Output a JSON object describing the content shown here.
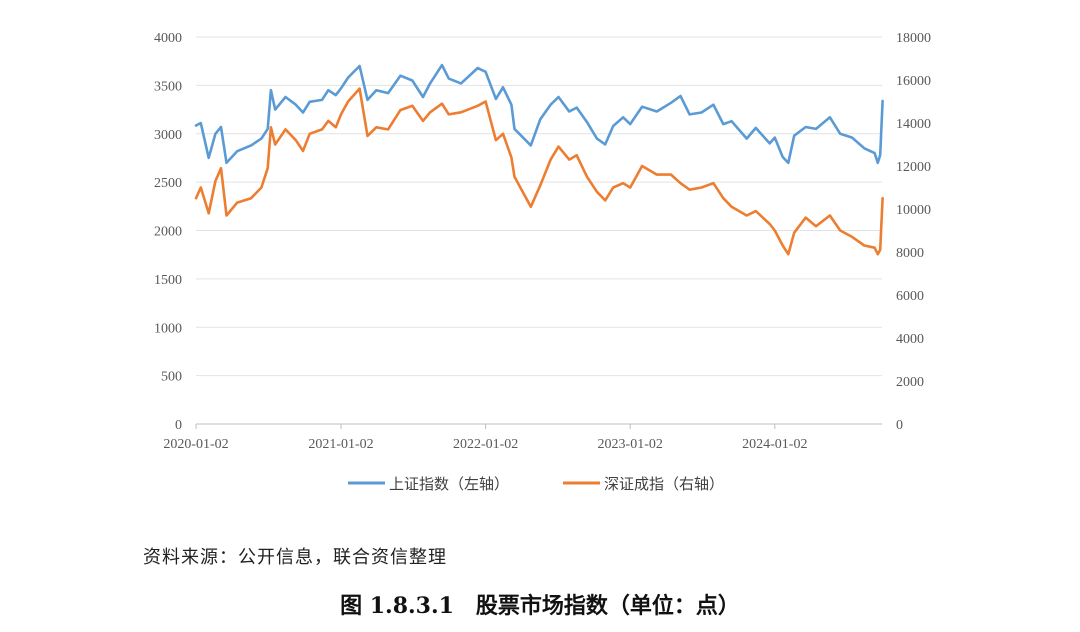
{
  "chart_data": {
    "type": "line",
    "x_tick_labels": [
      "2020-01-02",
      "2021-01-02",
      "2022-01-02",
      "2023-01-02",
      "2024-01-02"
    ],
    "y_left": {
      "ticks": [
        0,
        500,
        1000,
        1500,
        2000,
        2500,
        3000,
        3500,
        4000
      ],
      "range": [
        0,
        4000
      ]
    },
    "y_right": {
      "ticks": [
        0,
        2000,
        4000,
        6000,
        8000,
        10000,
        12000,
        14000,
        16000,
        18000
      ],
      "range": [
        0,
        18000
      ]
    },
    "grid": "horizontal",
    "legend_position": "bottom",
    "series": [
      {
        "name": "上证指数（左轴）",
        "axis": "left",
        "color": "#5b9bd5",
        "points": [
          [
            "2020-01-02",
            3085
          ],
          [
            "2020-01-14",
            3110
          ],
          [
            "2020-02-03",
            2750
          ],
          [
            "2020-02-20",
            3000
          ],
          [
            "2020-03-05",
            3070
          ],
          [
            "2020-03-19",
            2700
          ],
          [
            "2020-04-15",
            2820
          ],
          [
            "2020-05-20",
            2880
          ],
          [
            "2020-06-15",
            2950
          ],
          [
            "2020-07-01",
            3050
          ],
          [
            "2020-07-09",
            3450
          ],
          [
            "2020-07-20",
            3250
          ],
          [
            "2020-08-15",
            3380
          ],
          [
            "2020-09-10",
            3300
          ],
          [
            "2020-09-28",
            3220
          ],
          [
            "2020-10-15",
            3330
          ],
          [
            "2020-11-15",
            3350
          ],
          [
            "2020-12-01",
            3450
          ],
          [
            "2020-12-20",
            3400
          ],
          [
            "2021-01-02",
            3470
          ],
          [
            "2021-01-20",
            3580
          ],
          [
            "2021-02-18",
            3700
          ],
          [
            "2021-03-10",
            3350
          ],
          [
            "2021-04-01",
            3450
          ],
          [
            "2021-05-01",
            3420
          ],
          [
            "2021-06-01",
            3600
          ],
          [
            "2021-07-01",
            3550
          ],
          [
            "2021-07-28",
            3380
          ],
          [
            "2021-08-15",
            3520
          ],
          [
            "2021-09-14",
            3710
          ],
          [
            "2021-10-01",
            3570
          ],
          [
            "2021-11-01",
            3520
          ],
          [
            "2021-12-13",
            3680
          ],
          [
            "2022-01-02",
            3640
          ],
          [
            "2022-01-28",
            3360
          ],
          [
            "2022-02-15",
            3480
          ],
          [
            "2022-03-08",
            3300
          ],
          [
            "2022-03-16",
            3050
          ],
          [
            "2022-04-26",
            2880
          ],
          [
            "2022-05-20",
            3150
          ],
          [
            "2022-06-15",
            3300
          ],
          [
            "2022-07-05",
            3380
          ],
          [
            "2022-08-01",
            3230
          ],
          [
            "2022-08-20",
            3270
          ],
          [
            "2022-09-15",
            3120
          ],
          [
            "2022-10-10",
            2950
          ],
          [
            "2022-10-31",
            2890
          ],
          [
            "2022-11-20",
            3080
          ],
          [
            "2022-12-15",
            3170
          ],
          [
            "2023-01-02",
            3100
          ],
          [
            "2023-02-01",
            3280
          ],
          [
            "2023-03-10",
            3230
          ],
          [
            "2023-04-15",
            3320
          ],
          [
            "2023-05-09",
            3390
          ],
          [
            "2023-06-01",
            3200
          ],
          [
            "2023-07-01",
            3220
          ],
          [
            "2023-07-31",
            3300
          ],
          [
            "2023-08-25",
            3100
          ],
          [
            "2023-09-15",
            3130
          ],
          [
            "2023-10-23",
            2950
          ],
          [
            "2023-11-15",
            3060
          ],
          [
            "2023-12-20",
            2900
          ],
          [
            "2024-01-02",
            2960
          ],
          [
            "2024-01-22",
            2760
          ],
          [
            "2024-02-05",
            2700
          ],
          [
            "2024-02-20",
            2980
          ],
          [
            "2024-03-20",
            3070
          ],
          [
            "2024-04-15",
            3050
          ],
          [
            "2024-05-20",
            3170
          ],
          [
            "2024-06-15",
            3000
          ],
          [
            "2024-07-15",
            2960
          ],
          [
            "2024-08-15",
            2850
          ],
          [
            "2024-09-10",
            2800
          ],
          [
            "2024-09-18",
            2700
          ],
          [
            "2024-09-24",
            2780
          ],
          [
            "2024-09-30",
            3340
          ]
        ]
      },
      {
        "name": "深证成指（右轴）",
        "axis": "right",
        "color": "#ed7d31",
        "points": [
          [
            "2020-01-02",
            10500
          ],
          [
            "2020-01-14",
            11000
          ],
          [
            "2020-02-03",
            9800
          ],
          [
            "2020-02-20",
            11300
          ],
          [
            "2020-03-05",
            11900
          ],
          [
            "2020-03-19",
            9700
          ],
          [
            "2020-04-15",
            10300
          ],
          [
            "2020-05-20",
            10500
          ],
          [
            "2020-06-15",
            11000
          ],
          [
            "2020-07-01",
            11900
          ],
          [
            "2020-07-09",
            13800
          ],
          [
            "2020-07-20",
            13000
          ],
          [
            "2020-08-15",
            13700
          ],
          [
            "2020-09-10",
            13200
          ],
          [
            "2020-09-28",
            12700
          ],
          [
            "2020-10-15",
            13500
          ],
          [
            "2020-11-15",
            13700
          ],
          [
            "2020-12-01",
            14100
          ],
          [
            "2020-12-20",
            13800
          ],
          [
            "2021-01-02",
            14400
          ],
          [
            "2021-01-20",
            15000
          ],
          [
            "2021-02-18",
            15600
          ],
          [
            "2021-03-10",
            13400
          ],
          [
            "2021-04-01",
            13800
          ],
          [
            "2021-05-01",
            13700
          ],
          [
            "2021-06-01",
            14600
          ],
          [
            "2021-07-01",
            14800
          ],
          [
            "2021-07-28",
            14100
          ],
          [
            "2021-08-15",
            14500
          ],
          [
            "2021-09-14",
            14900
          ],
          [
            "2021-10-01",
            14400
          ],
          [
            "2021-11-01",
            14500
          ],
          [
            "2021-12-13",
            14800
          ],
          [
            "2022-01-02",
            15000
          ],
          [
            "2022-01-28",
            13200
          ],
          [
            "2022-02-15",
            13500
          ],
          [
            "2022-03-08",
            12400
          ],
          [
            "2022-03-16",
            11500
          ],
          [
            "2022-04-26",
            10100
          ],
          [
            "2022-05-20",
            11100
          ],
          [
            "2022-06-15",
            12300
          ],
          [
            "2022-07-05",
            12900
          ],
          [
            "2022-08-01",
            12300
          ],
          [
            "2022-08-20",
            12500
          ],
          [
            "2022-09-15",
            11500
          ],
          [
            "2022-10-10",
            10800
          ],
          [
            "2022-10-31",
            10400
          ],
          [
            "2022-11-20",
            11000
          ],
          [
            "2022-12-15",
            11200
          ],
          [
            "2023-01-02",
            11000
          ],
          [
            "2023-02-01",
            12000
          ],
          [
            "2023-03-10",
            11600
          ],
          [
            "2023-04-15",
            11600
          ],
          [
            "2023-05-09",
            11200
          ],
          [
            "2023-06-01",
            10900
          ],
          [
            "2023-07-01",
            11000
          ],
          [
            "2023-07-31",
            11200
          ],
          [
            "2023-08-25",
            10500
          ],
          [
            "2023-09-15",
            10100
          ],
          [
            "2023-10-23",
            9700
          ],
          [
            "2023-11-15",
            9900
          ],
          [
            "2023-12-20",
            9300
          ],
          [
            "2024-01-02",
            9000
          ],
          [
            "2024-01-22",
            8300
          ],
          [
            "2024-02-05",
            7900
          ],
          [
            "2024-02-20",
            8900
          ],
          [
            "2024-03-20",
            9600
          ],
          [
            "2024-04-15",
            9200
          ],
          [
            "2024-05-20",
            9700
          ],
          [
            "2024-06-15",
            9000
          ],
          [
            "2024-07-15",
            8700
          ],
          [
            "2024-08-15",
            8300
          ],
          [
            "2024-09-10",
            8200
          ],
          [
            "2024-09-18",
            7900
          ],
          [
            "2024-09-24",
            8100
          ],
          [
            "2024-09-30",
            10500
          ]
        ]
      }
    ]
  },
  "source_text": "资料来源：公开信息，联合资信整理",
  "caption": "图 1.8.3.1　股票市场指数（单位：点）"
}
